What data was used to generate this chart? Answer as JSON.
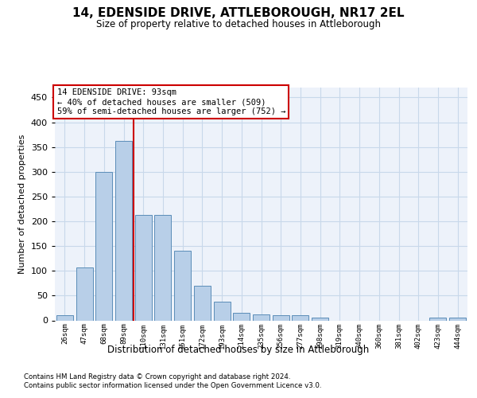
{
  "title": "14, EDENSIDE DRIVE, ATTLEBOROUGH, NR17 2EL",
  "subtitle": "Size of property relative to detached houses in Attleborough",
  "xlabel": "Distribution of detached houses by size in Attleborough",
  "ylabel": "Number of detached properties",
  "categories": [
    "26sqm",
    "47sqm",
    "68sqm",
    "89sqm",
    "110sqm",
    "131sqm",
    "151sqm",
    "172sqm",
    "193sqm",
    "214sqm",
    "235sqm",
    "256sqm",
    "277sqm",
    "298sqm",
    "319sqm",
    "340sqm",
    "360sqm",
    "381sqm",
    "402sqm",
    "423sqm",
    "444sqm"
  ],
  "values": [
    10,
    107,
    300,
    363,
    213,
    213,
    140,
    70,
    38,
    15,
    12,
    10,
    10,
    5,
    0,
    0,
    0,
    0,
    0,
    5,
    5
  ],
  "bar_color": "#b8cfe8",
  "bar_edge_color": "#5b8db8",
  "grid_color": "#c8d8ea",
  "background_color": "#edf2fa",
  "reference_line_x": 3.5,
  "reference_line_color": "#cc0000",
  "annotation_text": "14 EDENSIDE DRIVE: 93sqm\n← 40% of detached houses are smaller (509)\n59% of semi-detached houses are larger (752) →",
  "annotation_box_facecolor": "#ffffff",
  "annotation_box_edgecolor": "#cc0000",
  "ylim": [
    0,
    470
  ],
  "yticks": [
    0,
    50,
    100,
    150,
    200,
    250,
    300,
    350,
    400,
    450
  ],
  "footer1": "Contains HM Land Registry data © Crown copyright and database right 2024.",
  "footer2": "Contains public sector information licensed under the Open Government Licence v3.0."
}
